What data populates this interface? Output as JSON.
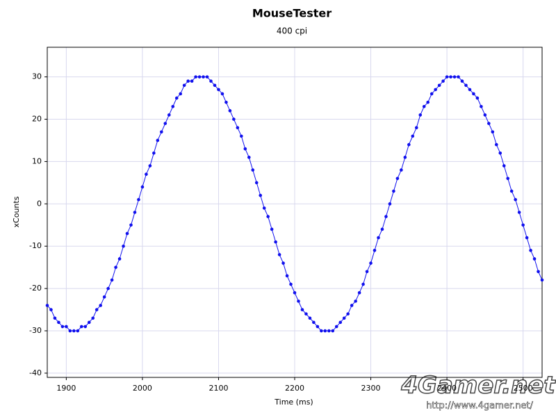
{
  "chart_data": {
    "type": "line",
    "title": "MouseTester",
    "subtitle": "400 cpi",
    "x_label": "Time (ms)",
    "y_label": "xCounts",
    "x": [
      1875,
      1880,
      1885,
      1890,
      1895,
      1900,
      1905,
      1910,
      1915,
      1920,
      1925,
      1930,
      1935,
      1940,
      1945,
      1950,
      1955,
      1960,
      1965,
      1970,
      1975,
      1980,
      1985,
      1990,
      1995,
      2000,
      2005,
      2010,
      2015,
      2020,
      2025,
      2030,
      2035,
      2040,
      2045,
      2050,
      2055,
      2060,
      2065,
      2070,
      2075,
      2080,
      2085,
      2090,
      2095,
      2100,
      2105,
      2110,
      2115,
      2120,
      2125,
      2130,
      2135,
      2140,
      2145,
      2150,
      2155,
      2160,
      2165,
      2170,
      2175,
      2180,
      2185,
      2190,
      2195,
      2200,
      2205,
      2210,
      2215,
      2220,
      2225,
      2230,
      2235,
      2240,
      2245,
      2250,
      2255,
      2260,
      2265,
      2270,
      2275,
      2280,
      2285,
      2290,
      2295,
      2300,
      2305,
      2310,
      2315,
      2320,
      2325,
      2330,
      2335,
      2340,
      2345,
      2350,
      2355,
      2360,
      2365,
      2370,
      2375,
      2380,
      2385,
      2390,
      2395,
      2400,
      2405,
      2410,
      2415,
      2420,
      2425,
      2430,
      2435,
      2440,
      2445,
      2450,
      2455,
      2460,
      2465,
      2470,
      2475,
      2480,
      2485,
      2490,
      2495,
      2500,
      2505,
      2510,
      2515,
      2520,
      2525
    ],
    "series": [
      {
        "name": "xCounts",
        "color": "#1010ee",
        "values": [
          -24,
          -25,
          -27,
          -28,
          -29,
          -29,
          -30,
          -30,
          -30,
          -29,
          -29,
          -28,
          -27,
          -25,
          -24,
          -22,
          -20,
          -18,
          -15,
          -13,
          -10,
          -7,
          -5,
          -2,
          1,
          4,
          7,
          9,
          12,
          15,
          17,
          19,
          21,
          23,
          25,
          26,
          28,
          29,
          29,
          30,
          30,
          30,
          30,
          29,
          28,
          27,
          26,
          24,
          22,
          20,
          18,
          16,
          13,
          11,
          8,
          5,
          2,
          -1,
          -3,
          -6,
          -9,
          -12,
          -14,
          -17,
          -19,
          -21,
          -23,
          -25,
          -26,
          -27,
          -28,
          -29,
          -30,
          -30,
          -30,
          -30,
          -29,
          -28,
          -27,
          -26,
          -24,
          -23,
          -21,
          -19,
          -16,
          -14,
          -11,
          -8,
          -6,
          -3,
          0,
          3,
          6,
          8,
          11,
          14,
          16,
          18,
          21,
          23,
          24,
          26,
          27,
          28,
          29,
          30,
          30,
          30,
          30,
          29,
          28,
          27,
          26,
          25,
          23,
          21,
          19,
          17,
          14,
          12,
          9,
          6,
          3,
          1,
          -2,
          -5,
          -8,
          -11,
          -13,
          -16,
          -18
        ]
      }
    ],
    "xlim": [
      1875,
      2525
    ],
    "xticks": [
      1900,
      2000,
      2100,
      2200,
      2300,
      2400,
      2500
    ],
    "ylim": [
      -41,
      37
    ],
    "yticks": [
      -40,
      -30,
      -20,
      -10,
      0,
      10,
      20,
      30
    ],
    "grid": true,
    "watermark": "4Gamer.net",
    "watermark_url": "http://www.4gamer.net/"
  }
}
